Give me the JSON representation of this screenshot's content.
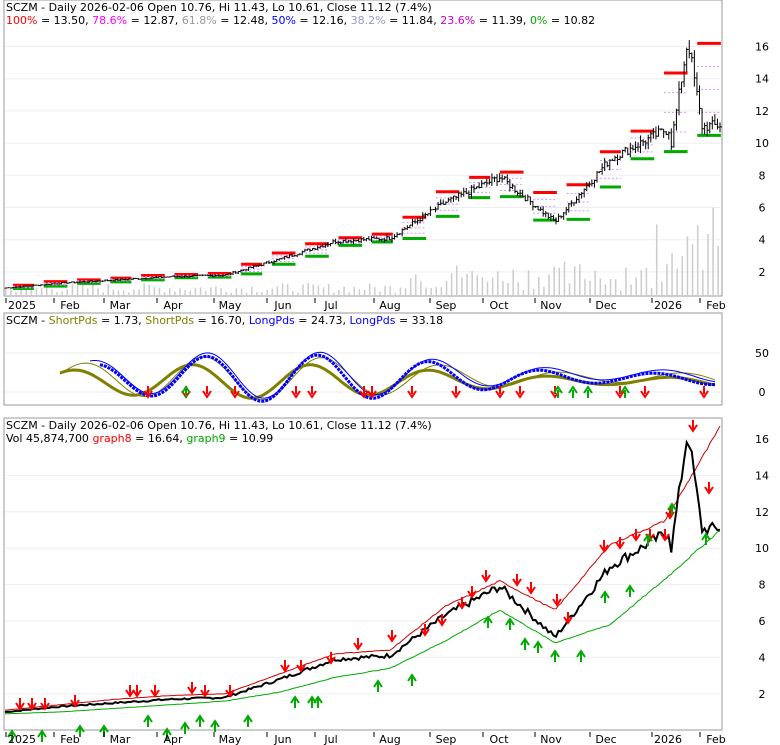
{
  "panel1": {
    "title": "SCZM - Daily 2026-02-06 Open 10.76, Hi 11.43, Lo 10.61, Close 11.12 (7.4%)",
    "fib_levels": [
      {
        "label": "100%",
        "value": "13.50",
        "color": "#ff0000"
      },
      {
        "label": "78.6%",
        "value": "12.87",
        "color": "#ff00ff"
      },
      {
        "label": "61.8%",
        "value": "12.48",
        "color": "#999999"
      },
      {
        "label": "50%",
        "value": "12.16",
        "color": "#0000ff"
      },
      {
        "label": "38.2%",
        "value": "11.84",
        "color": "#9999cc"
      },
      {
        "label": "23.6%",
        "value": "11.39",
        "color": "#cc00cc"
      },
      {
        "label": "0%",
        "value": "10.82",
        "color": "#00aa00"
      }
    ],
    "yticks": [
      "2",
      "4",
      "6",
      "8",
      "10",
      "12",
      "14",
      "16"
    ]
  },
  "panel2": {
    "parts": [
      {
        "text": "SCZM - ",
        "color": "#000000"
      },
      {
        "text": "ShortPds",
        "color": "#808000"
      },
      {
        "text": " = 1.73, ",
        "color": "#000000"
      },
      {
        "text": "ShortPds",
        "color": "#808000"
      },
      {
        "text": " = 16.70, ",
        "color": "#000000"
      },
      {
        "text": "LongPds",
        "color": "#0000ff"
      },
      {
        "text": " = 24.73, ",
        "color": "#000000"
      },
      {
        "text": "LongPds",
        "color": "#0000ff"
      },
      {
        "text": " = 33.18",
        "color": "#000000"
      }
    ],
    "yticks": [
      "0",
      "50"
    ]
  },
  "panel3": {
    "title": "SCZM - Daily 2026-02-06 Open 10.76, Hi 11.43, Lo 10.61, Close 11.12 (7.4%)",
    "vol_parts": [
      {
        "text": "Vol 45,874,700 ",
        "color": "#000000"
      },
      {
        "text": "graph8",
        "color": "#ff0000"
      },
      {
        "text": " = 16.64, ",
        "color": "#000000"
      },
      {
        "text": "graph9",
        "color": "#00aa00"
      },
      {
        "text": " = 10.99",
        "color": "#000000"
      }
    ],
    "yticks": [
      "2",
      "4",
      "6",
      "8",
      "10",
      "12",
      "14",
      "16"
    ]
  },
  "x_axis_labels": [
    "2025",
    "Feb",
    "Mar",
    "Apr",
    "May",
    "Jun",
    "Jul",
    "Aug",
    "Sep",
    "Oct",
    "Nov",
    "Dec",
    "2026",
    "Feb"
  ],
  "chart_data": {
    "type": "line",
    "title": "SCZM - Daily 2026-02-06 Open 10.76, Hi 11.43, Lo 10.61, Close 11.12 (7.4%)",
    "x": [
      "2025-01",
      "2025-02",
      "2025-03",
      "2025-04",
      "2025-05",
      "2025-06",
      "2025-07",
      "2025-08",
      "2025-09",
      "2025-10",
      "2025-11",
      "2025-12",
      "2026-01",
      "2026-02"
    ],
    "series": [
      {
        "name": "Close",
        "values": [
          1.0,
          1.3,
          1.5,
          1.7,
          1.8,
          2.8,
          3.9,
          4.1,
          6.3,
          7.9,
          5.1,
          9.0,
          10.8,
          11.12
        ]
      },
      {
        "name": "graph8",
        "values": [
          1.1,
          1.4,
          1.7,
          1.9,
          2.0,
          3.1,
          4.2,
          4.4,
          6.8,
          8.2,
          6.6,
          10.2,
          11.5,
          16.64
        ]
      },
      {
        "name": "graph9",
        "values": [
          0.9,
          1.0,
          1.2,
          1.4,
          1.6,
          2.1,
          2.9,
          3.4,
          4.9,
          6.6,
          4.8,
          5.8,
          8.3,
          10.99
        ]
      }
    ],
    "ylim": [
      0.5,
      17.5
    ],
    "fibonacci": {
      "100%": 13.5,
      "78.6%": 12.87,
      "61.8%": 12.48,
      "50%": 12.16,
      "38.2%": 11.84,
      "23.6%": 11.39,
      "0%": 10.82
    },
    "volume": "45,874,700"
  },
  "colors": {
    "up": "#00aa00",
    "down": "#ff0000",
    "price": "#000000",
    "short": "#808000",
    "long": "#0000ff",
    "grid": "#cc99ff"
  }
}
